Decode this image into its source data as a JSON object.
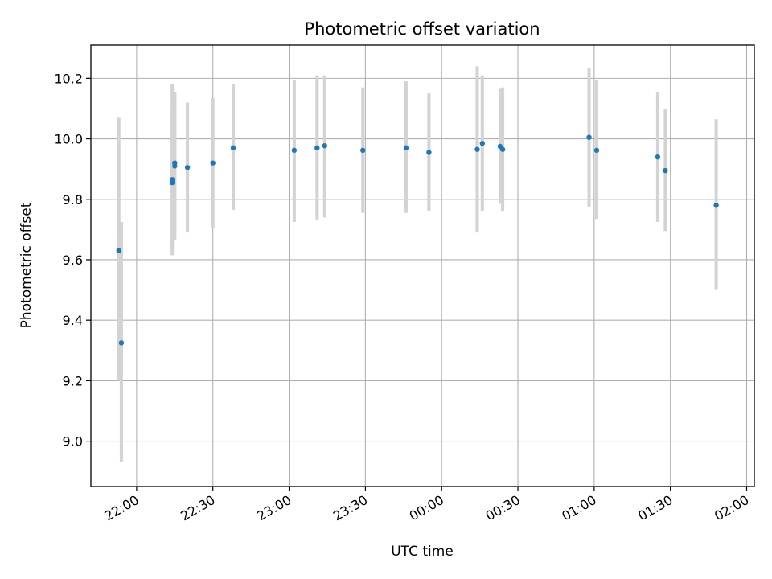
{
  "chart_data": {
    "type": "scatter",
    "title": "Photometric offset variation",
    "xlabel": "UTC time",
    "ylabel": "Photometric offset",
    "x_axis_type": "time",
    "x_start": "21:42",
    "x_end": "02:03",
    "xlim": [
      "21:42",
      "02:03"
    ],
    "ylim": [
      8.85,
      10.31
    ],
    "grid": true,
    "xticks": [
      "22:00",
      "22:30",
      "23:00",
      "23:30",
      "00:00",
      "00:30",
      "01:00",
      "01:30",
      "02:00"
    ],
    "yticks": [
      "9.0",
      "9.2",
      "9.4",
      "9.6",
      "9.8",
      "10.0",
      "10.2"
    ],
    "colors": {
      "points": "#1f77b4",
      "error_bars": "#d3d3d3",
      "grid": "#b0b0b0"
    },
    "series": [
      {
        "points": [
          {
            "x": "21:53",
            "y": 9.63,
            "ylo": 9.2,
            "yhi": 10.07
          },
          {
            "x": "21:54",
            "y": 9.325,
            "ylo": 8.93,
            "yhi": 9.725
          },
          {
            "x": "22:14",
            "y": 9.855,
            "ylo": 9.615,
            "yhi": 10.09
          },
          {
            "x": "22:14",
            "y": 9.865,
            "ylo": 9.64,
            "yhi": 10.18
          },
          {
            "x": "22:15",
            "y": 9.92,
            "ylo": 9.665,
            "yhi": 10.155
          },
          {
            "x": "22:15",
            "y": 9.91,
            "ylo": 9.68,
            "yhi": 10.15
          },
          {
            "x": "22:20",
            "y": 9.905,
            "ylo": 9.69,
            "yhi": 10.12
          },
          {
            "x": "22:30",
            "y": 9.92,
            "ylo": 9.705,
            "yhi": 10.135
          },
          {
            "x": "22:38",
            "y": 9.97,
            "ylo": 9.765,
            "yhi": 10.18
          },
          {
            "x": "23:02",
            "y": 9.962,
            "ylo": 9.725,
            "yhi": 10.195
          },
          {
            "x": "23:11",
            "y": 9.97,
            "ylo": 9.73,
            "yhi": 10.21
          },
          {
            "x": "23:14",
            "y": 9.977,
            "ylo": 9.74,
            "yhi": 10.21
          },
          {
            "x": "23:29",
            "y": 9.962,
            "ylo": 9.755,
            "yhi": 10.17
          },
          {
            "x": "23:46",
            "y": 9.97,
            "ylo": 9.755,
            "yhi": 10.19
          },
          {
            "x": "23:55",
            "y": 9.955,
            "ylo": 9.76,
            "yhi": 10.15
          },
          {
            "x": "00:14",
            "y": 9.965,
            "ylo": 9.69,
            "yhi": 10.24
          },
          {
            "x": "00:16",
            "y": 9.985,
            "ylo": 9.76,
            "yhi": 10.21
          },
          {
            "x": "00:23",
            "y": 9.975,
            "ylo": 9.785,
            "yhi": 10.165
          },
          {
            "x": "00:24",
            "y": 9.965,
            "ylo": 9.76,
            "yhi": 10.17
          },
          {
            "x": "00:58",
            "y": 10.005,
            "ylo": 9.775,
            "yhi": 10.235
          },
          {
            "x": "01:01",
            "y": 9.962,
            "ylo": 9.735,
            "yhi": 10.195
          },
          {
            "x": "01:25",
            "y": 9.94,
            "ylo": 9.725,
            "yhi": 10.155
          },
          {
            "x": "01:28",
            "y": 9.895,
            "ylo": 9.695,
            "yhi": 10.1
          },
          {
            "x": "01:48",
            "y": 9.78,
            "ylo": 9.5,
            "yhi": 10.065
          }
        ]
      }
    ]
  }
}
